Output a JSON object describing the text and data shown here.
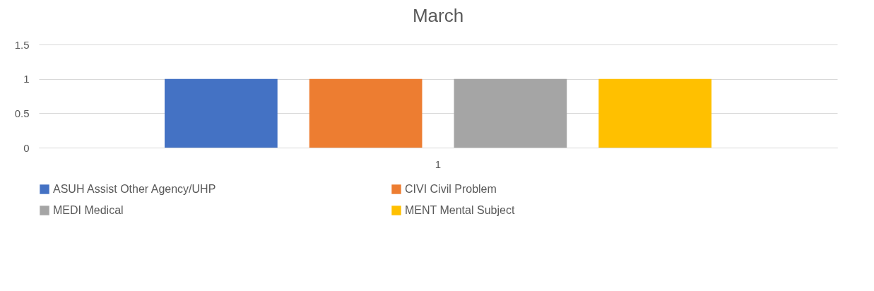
{
  "chart_data": {
    "type": "bar",
    "title": "March",
    "categories": [
      "1"
    ],
    "series": [
      {
        "name": "ASUH Assist Other Agency/UHP",
        "color": "#4472c4",
        "values": [
          1
        ]
      },
      {
        "name": "CIVI Civil Problem",
        "color": "#ed7d31",
        "values": [
          1
        ]
      },
      {
        "name": "MEDI Medical",
        "color": "#a5a5a5",
        "values": [
          1
        ]
      },
      {
        "name": "MENT Mental Subject",
        "color": "#ffc000",
        "values": [
          1
        ]
      }
    ],
    "ylim": [
      0,
      1.5
    ],
    "yticks": [
      0,
      0.5,
      1,
      1.5
    ],
    "grid": "y",
    "legend": "bottom"
  }
}
